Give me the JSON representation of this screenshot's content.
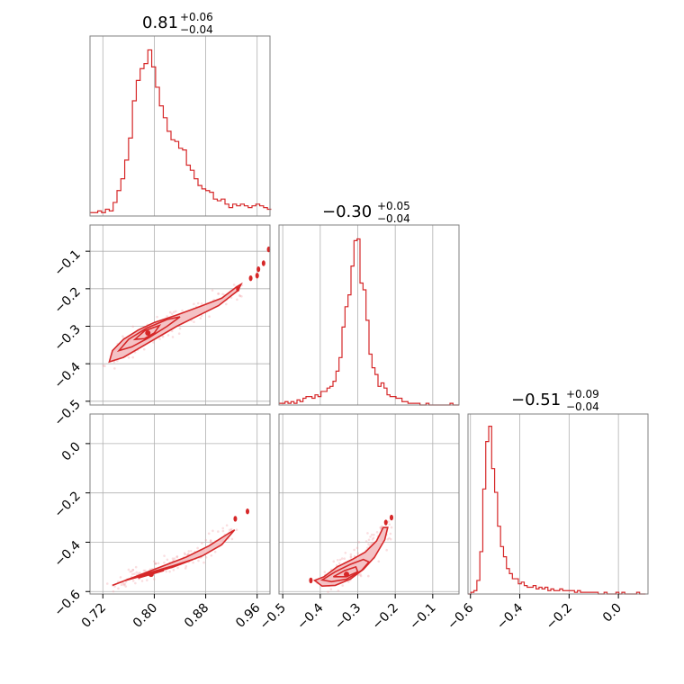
{
  "chart_data": {
    "type": "scatter",
    "title": "",
    "parameters": 3,
    "accent_color": "#d62728",
    "diag_titles": [
      {
        "value": "0.81",
        "plus": "+0.06",
        "minus": "−0.04"
      },
      {
        "value": "−0.30",
        "plus": "+0.05",
        "minus": "−0.04"
      },
      {
        "value": "−0.51",
        "plus": "+0.09",
        "minus": "−0.04"
      }
    ],
    "axes": {
      "p0": {
        "range": [
          0.7,
          0.98
        ],
        "ticks": [
          0.72,
          0.8,
          0.88,
          0.96
        ],
        "tick_labels": [
          "0.72",
          "0.80",
          "0.88",
          "0.96"
        ]
      },
      "p1": {
        "range": [
          -0.51,
          -0.03
        ],
        "ticks": [
          -0.5,
          -0.4,
          -0.3,
          -0.2,
          -0.1
        ],
        "tick_labels": [
          "−0.5",
          "−0.4",
          "−0.3",
          "−0.2",
          "−0.1"
        ]
      },
      "p2": {
        "range": [
          -0.61,
          0.12
        ],
        "ticks": [
          -0.6,
          -0.4,
          -0.2,
          0.0
        ],
        "tick_labels": [
          "−0.6",
          "−0.4",
          "−0.2",
          "0.0"
        ]
      },
      "p1_bottom": {
        "ticks": [
          -0.5,
          -0.4,
          -0.3,
          -0.2,
          -0.1
        ],
        "tick_labels": [
          "−0.5",
          "−0.4",
          "−0.3",
          "−0.2",
          "−0.1"
        ]
      },
      "p2_bottom": {
        "ticks": [
          -0.6,
          -0.4,
          -0.2,
          0.0
        ],
        "tick_labels": [
          "−0.6",
          "−0.4",
          "−0.2",
          "0.0"
        ]
      }
    },
    "histograms": [
      {
        "param": "p0",
        "x": [
          0.7,
          0.706,
          0.712,
          0.718,
          0.724,
          0.73,
          0.736,
          0.742,
          0.748,
          0.754,
          0.76,
          0.766,
          0.772,
          0.778,
          0.784,
          0.79,
          0.796,
          0.802,
          0.808,
          0.814,
          0.82,
          0.826,
          0.832,
          0.838,
          0.844,
          0.85,
          0.856,
          0.862,
          0.868,
          0.874,
          0.88,
          0.886,
          0.892,
          0.898,
          0.904,
          0.91,
          0.916,
          0.922,
          0.928,
          0.934,
          0.94,
          0.946,
          0.952,
          0.958,
          0.964,
          0.97,
          0.976
        ],
        "y": [
          0.02,
          0.02,
          0.03,
          0.02,
          0.04,
          0.03,
          0.08,
          0.15,
          0.22,
          0.33,
          0.46,
          0.68,
          0.8,
          0.87,
          0.9,
          0.98,
          0.88,
          0.76,
          0.65,
          0.58,
          0.5,
          0.45,
          0.44,
          0.4,
          0.39,
          0.3,
          0.27,
          0.22,
          0.18,
          0.16,
          0.15,
          0.14,
          0.1,
          0.09,
          0.1,
          0.07,
          0.05,
          0.07,
          0.06,
          0.07,
          0.06,
          0.05,
          0.06,
          0.07,
          0.06,
          0.05,
          0.04
        ]
      },
      {
        "param": "p1",
        "x": [
          -0.51,
          -0.502,
          -0.494,
          -0.486,
          -0.478,
          -0.47,
          -0.462,
          -0.454,
          -0.446,
          -0.438,
          -0.43,
          -0.422,
          -0.414,
          -0.406,
          -0.398,
          -0.39,
          -0.382,
          -0.374,
          -0.366,
          -0.358,
          -0.35,
          -0.342,
          -0.334,
          -0.326,
          -0.318,
          -0.31,
          -0.302,
          -0.294,
          -0.286,
          -0.278,
          -0.27,
          -0.262,
          -0.254,
          -0.246,
          -0.238,
          -0.23,
          -0.222,
          -0.214,
          -0.206,
          -0.198,
          -0.19,
          -0.182,
          -0.174,
          -0.166,
          -0.158,
          -0.15,
          -0.142,
          -0.134,
          -0.126,
          -0.118,
          -0.11,
          -0.102,
          -0.094,
          -0.086,
          -0.078,
          -0.07,
          -0.062,
          -0.054,
          -0.046,
          -0.038
        ],
        "y": [
          0.01,
          0.01,
          0.02,
          0.01,
          0.02,
          0.01,
          0.03,
          0.02,
          0.04,
          0.05,
          0.05,
          0.04,
          0.06,
          0.05,
          0.08,
          0.08,
          0.1,
          0.11,
          0.14,
          0.2,
          0.28,
          0.46,
          0.58,
          0.65,
          0.82,
          0.97,
          0.98,
          0.72,
          0.68,
          0.5,
          0.3,
          0.22,
          0.18,
          0.11,
          0.13,
          0.1,
          0.06,
          0.05,
          0.05,
          0.04,
          0.04,
          0.02,
          0.02,
          0.01,
          0.01,
          0.01,
          0.01,
          0.0,
          0.0,
          0.01,
          0.0,
          0.0,
          0.0,
          0.0,
          0.0,
          0.0,
          0.0,
          0.01,
          0.0,
          0.0
        ]
      },
      {
        "param": "p2",
        "x": [
          -0.61,
          -0.598,
          -0.586,
          -0.574,
          -0.562,
          -0.55,
          -0.538,
          -0.526,
          -0.514,
          -0.502,
          -0.49,
          -0.478,
          -0.466,
          -0.454,
          -0.442,
          -0.43,
          -0.418,
          -0.406,
          -0.394,
          -0.382,
          -0.37,
          -0.358,
          -0.346,
          -0.334,
          -0.322,
          -0.31,
          -0.298,
          -0.286,
          -0.274,
          -0.262,
          -0.25,
          -0.238,
          -0.226,
          -0.214,
          -0.202,
          -0.19,
          -0.178,
          -0.166,
          -0.154,
          -0.142,
          -0.13,
          -0.118,
          -0.106,
          -0.094,
          -0.082,
          -0.07,
          -0.058,
          -0.046,
          -0.034,
          -0.022,
          -0.01,
          0.002,
          0.014,
          0.026,
          0.038,
          0.05,
          0.062,
          0.074,
          0.086,
          0.098
        ],
        "y": [
          0.0,
          0.01,
          0.02,
          0.08,
          0.25,
          0.62,
          0.9,
          0.99,
          0.74,
          0.6,
          0.4,
          0.28,
          0.22,
          0.15,
          0.12,
          0.09,
          0.09,
          0.06,
          0.07,
          0.05,
          0.04,
          0.04,
          0.05,
          0.03,
          0.04,
          0.03,
          0.04,
          0.02,
          0.03,
          0.02,
          0.02,
          0.03,
          0.02,
          0.02,
          0.02,
          0.02,
          0.01,
          0.02,
          0.01,
          0.01,
          0.01,
          0.01,
          0.01,
          0.01,
          0.0,
          0.0,
          0.01,
          0.0,
          0.0,
          0.0,
          0.01,
          0.0,
          0.01,
          0.0,
          0.0,
          0.0,
          0.0,
          0.01,
          0.0,
          0.0
        ]
      }
    ],
    "contours": [
      {
        "x": "p0",
        "y": "p1",
        "outer": [
          [
            0.73,
            -0.395
          ],
          [
            0.735,
            -0.365
          ],
          [
            0.752,
            -0.335
          ],
          [
            0.775,
            -0.31
          ],
          [
            0.8,
            -0.29
          ],
          [
            0.835,
            -0.27
          ],
          [
            0.87,
            -0.248
          ],
          [
            0.905,
            -0.225
          ],
          [
            0.928,
            -0.195
          ],
          [
            0.935,
            -0.188
          ],
          [
            0.93,
            -0.205
          ],
          [
            0.9,
            -0.245
          ],
          [
            0.868,
            -0.272
          ],
          [
            0.835,
            -0.3
          ],
          [
            0.805,
            -0.33
          ],
          [
            0.775,
            -0.36
          ],
          [
            0.752,
            -0.383
          ]
        ],
        "middle": [
          [
            0.745,
            -0.365
          ],
          [
            0.76,
            -0.335
          ],
          [
            0.788,
            -0.305
          ],
          [
            0.82,
            -0.282
          ],
          [
            0.84,
            -0.275
          ],
          [
            0.82,
            -0.3
          ],
          [
            0.792,
            -0.33
          ],
          [
            0.765,
            -0.355
          ]
        ],
        "inner": [
          [
            0.77,
            -0.335
          ],
          [
            0.785,
            -0.312
          ],
          [
            0.808,
            -0.298
          ],
          [
            0.8,
            -0.318
          ],
          [
            0.785,
            -0.333
          ]
        ],
        "core": [
          0.79,
          -0.318
        ],
        "islands": [
          [
            0.93,
            -0.2
          ],
          [
            0.95,
            -0.172
          ],
          [
            0.96,
            -0.165
          ],
          [
            0.962,
            -0.148
          ],
          [
            0.97,
            -0.132
          ],
          [
            0.978,
            -0.095
          ]
        ]
      },
      {
        "x": "p0",
        "y": "p2",
        "outer": [
          [
            0.735,
            -0.575
          ],
          [
            0.76,
            -0.55
          ],
          [
            0.8,
            -0.52
          ],
          [
            0.84,
            -0.49
          ],
          [
            0.875,
            -0.455
          ],
          [
            0.905,
            -0.41
          ],
          [
            0.925,
            -0.35
          ],
          [
            0.915,
            -0.365
          ],
          [
            0.885,
            -0.415
          ],
          [
            0.85,
            -0.46
          ],
          [
            0.81,
            -0.5
          ],
          [
            0.77,
            -0.54
          ],
          [
            0.745,
            -0.565
          ]
        ],
        "middle": [
          [
            0.755,
            -0.555
          ],
          [
            0.79,
            -0.53
          ],
          [
            0.83,
            -0.5
          ],
          [
            0.86,
            -0.47
          ],
          [
            0.83,
            -0.495
          ],
          [
            0.79,
            -0.525
          ],
          [
            0.76,
            -0.55
          ]
        ],
        "inner": [
          [
            0.775,
            -0.545
          ],
          [
            0.8,
            -0.525
          ],
          [
            0.815,
            -0.515
          ],
          [
            0.795,
            -0.53
          ]
        ],
        "core": [
          0.795,
          -0.53
        ],
        "islands": [
          [
            0.926,
            -0.305
          ],
          [
            0.945,
            -0.275
          ]
        ]
      },
      {
        "x": "p1",
        "y": "p2",
        "outer": [
          [
            -0.415,
            -0.555
          ],
          [
            -0.39,
            -0.54
          ],
          [
            -0.355,
            -0.5
          ],
          [
            -0.315,
            -0.47
          ],
          [
            -0.28,
            -0.44
          ],
          [
            -0.25,
            -0.395
          ],
          [
            -0.232,
            -0.34
          ],
          [
            -0.22,
            -0.34
          ],
          [
            -0.228,
            -0.39
          ],
          [
            -0.255,
            -0.46
          ],
          [
            -0.285,
            -0.51
          ],
          [
            -0.32,
            -0.55
          ],
          [
            -0.36,
            -0.575
          ],
          [
            -0.395,
            -0.578
          ]
        ],
        "middle": [
          [
            -0.395,
            -0.553
          ],
          [
            -0.36,
            -0.52
          ],
          [
            -0.32,
            -0.49
          ],
          [
            -0.285,
            -0.47
          ],
          [
            -0.27,
            -0.48
          ],
          [
            -0.29,
            -0.515
          ],
          [
            -0.33,
            -0.55
          ],
          [
            -0.37,
            -0.56
          ]
        ],
        "inner": [
          [
            -0.365,
            -0.54
          ],
          [
            -0.335,
            -0.515
          ],
          [
            -0.305,
            -0.5
          ],
          [
            -0.3,
            -0.52
          ],
          [
            -0.33,
            -0.54
          ]
        ],
        "core": [
          -0.33,
          -0.53
        ],
        "islands": [
          [
            -0.425,
            -0.555
          ],
          [
            -0.225,
            -0.32
          ],
          [
            -0.21,
            -0.3
          ]
        ]
      }
    ]
  }
}
